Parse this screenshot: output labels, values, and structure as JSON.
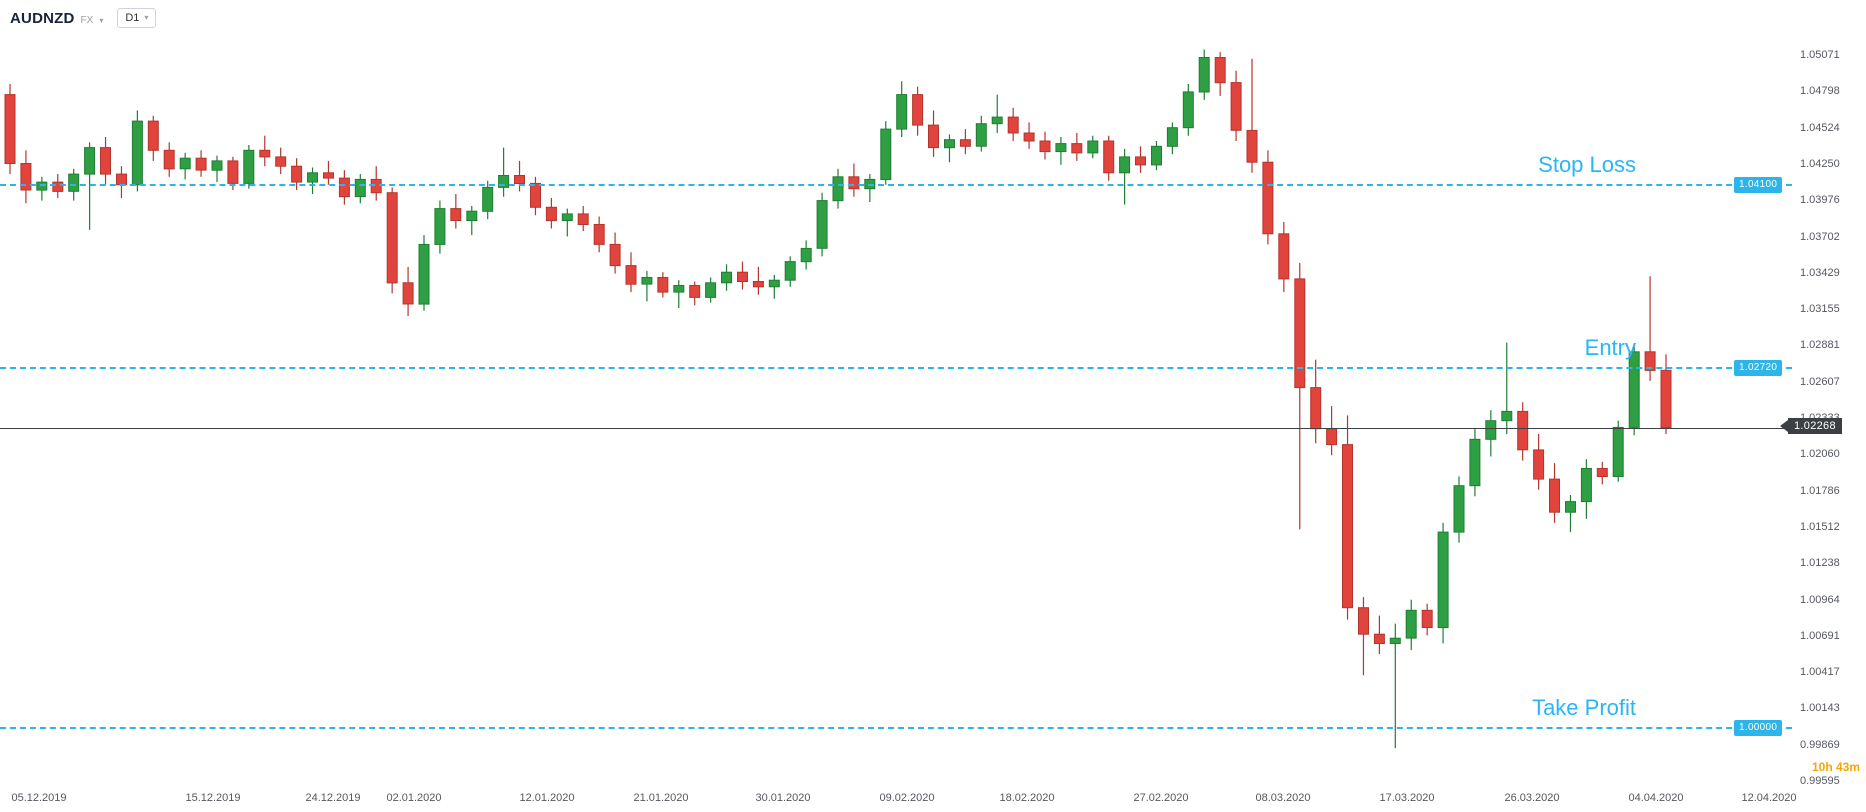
{
  "header": {
    "symbol": "AUDNZD",
    "market": "FX",
    "timeframe": "D1"
  },
  "chart_data": {
    "type": "candlestick",
    "title": "AUDNZD D1",
    "ylim": [
      0.99595,
      1.05071
    ],
    "y_axis_ticks": [
      "1.05071",
      "1.04798",
      "1.04524",
      "1.04250",
      "1.03976",
      "1.03702",
      "1.03429",
      "1.03155",
      "1.02881",
      "1.02607",
      "1.02333",
      "1.02060",
      "1.01786",
      "1.01512",
      "1.01238",
      "1.00964",
      "1.00691",
      "1.00417",
      "1.00143",
      "0.99869",
      "0.99595"
    ],
    "x_axis_ticks": [
      {
        "label": "05.12.2019",
        "pos": 0.022
      },
      {
        "label": "15.12.2019",
        "pos": 0.119
      },
      {
        "label": "24.12.2019",
        "pos": 0.186
      },
      {
        "label": "02.01.2020",
        "pos": 0.231
      },
      {
        "label": "12.01.2020",
        "pos": 0.305
      },
      {
        "label": "21.01.2020",
        "pos": 0.369
      },
      {
        "label": "30.01.2020",
        "pos": 0.437
      },
      {
        "label": "09.02.2020",
        "pos": 0.506
      },
      {
        "label": "18.02.2020",
        "pos": 0.573
      },
      {
        "label": "27.02.2020",
        "pos": 0.648
      },
      {
        "label": "08.03.2020",
        "pos": 0.716
      },
      {
        "label": "17.03.2020",
        "pos": 0.785
      },
      {
        "label": "26.03.2020",
        "pos": 0.855
      },
      {
        "label": "04.04.2020",
        "pos": 0.924
      },
      {
        "label": "12.04.2020",
        "pos": 0.987
      }
    ],
    "levels": [
      {
        "name": "stop_loss",
        "label": "Stop Loss",
        "price": 1.041,
        "tag": "1.04100"
      },
      {
        "name": "entry",
        "label": "Entry",
        "price": 1.0272,
        "tag": "1.02720"
      },
      {
        "name": "take_profit",
        "label": "Take Profit",
        "price": 1.0,
        "tag": "1.00000"
      }
    ],
    "last_price": {
      "price": 1.02268,
      "tag": "1.02268"
    },
    "countdown": "10h 43m",
    "colors": {
      "up": "#2ea043",
      "up_border": "#1e7e34",
      "down": "#e0443c",
      "down_border": "#b3362e",
      "level": "#2db4e8",
      "level_text": "#29b6f6",
      "last_price": "#3c3f44",
      "countdown": "#f7a600",
      "axis_text": "#55585f"
    },
    "candles": [
      [
        1.0478,
        1.0486,
        1.0418,
        1.0426
      ],
      [
        1.0426,
        1.0436,
        1.0396,
        1.0406
      ],
      [
        1.0406,
        1.0416,
        1.0398,
        1.0412
      ],
      [
        1.0412,
        1.0418,
        1.04,
        1.0405
      ],
      [
        1.0405,
        1.0422,
        1.0398,
        1.0418
      ],
      [
        1.0418,
        1.0442,
        1.0376,
        1.0438
      ],
      [
        1.0438,
        1.0446,
        1.041,
        1.0418
      ],
      [
        1.0418,
        1.0424,
        1.04,
        1.041
      ],
      [
        1.041,
        1.0466,
        1.0405,
        1.0458
      ],
      [
        1.0458,
        1.0462,
        1.0428,
        1.0436
      ],
      [
        1.0436,
        1.0442,
        1.0416,
        1.0422
      ],
      [
        1.0422,
        1.0434,
        1.0414,
        1.043
      ],
      [
        1.043,
        1.0436,
        1.0416,
        1.0421
      ],
      [
        1.0421,
        1.0432,
        1.0412,
        1.0428
      ],
      [
        1.0428,
        1.0431,
        1.0406,
        1.0411
      ],
      [
        1.0411,
        1.044,
        1.0407,
        1.0436
      ],
      [
        1.0436,
        1.0447,
        1.0424,
        1.0431
      ],
      [
        1.0431,
        1.0438,
        1.0418,
        1.0424
      ],
      [
        1.0424,
        1.043,
        1.0406,
        1.0412
      ],
      [
        1.0412,
        1.0423,
        1.0403,
        1.0419
      ],
      [
        1.0419,
        1.0428,
        1.041,
        1.0415
      ],
      [
        1.0415,
        1.0421,
        1.0395,
        1.0401
      ],
      [
        1.0401,
        1.0418,
        1.0396,
        1.0414
      ],
      [
        1.0414,
        1.0424,
        1.0398,
        1.0404
      ],
      [
        1.0404,
        1.0408,
        1.0328,
        1.0336
      ],
      [
        1.0336,
        1.0348,
        1.0311,
        1.032
      ],
      [
        1.032,
        1.0372,
        1.0315,
        1.0365
      ],
      [
        1.0365,
        1.0398,
        1.0358,
        1.0392
      ],
      [
        1.0392,
        1.0403,
        1.0377,
        1.0383
      ],
      [
        1.0383,
        1.0394,
        1.0372,
        1.039
      ],
      [
        1.039,
        1.0413,
        1.0384,
        1.0408
      ],
      [
        1.0408,
        1.0438,
        1.0401,
        1.0417
      ],
      [
        1.0417,
        1.0428,
        1.0405,
        1.0411
      ],
      [
        1.0411,
        1.0416,
        1.0387,
        1.0393
      ],
      [
        1.0393,
        1.04,
        1.0377,
        1.0383
      ],
      [
        1.0383,
        1.0392,
        1.0371,
        1.0388
      ],
      [
        1.0388,
        1.0394,
        1.0375,
        1.038
      ],
      [
        1.038,
        1.0386,
        1.0359,
        1.0365
      ],
      [
        1.0365,
        1.0374,
        1.0343,
        1.0349
      ],
      [
        1.0349,
        1.0359,
        1.0329,
        1.0335
      ],
      [
        1.0335,
        1.0345,
        1.0322,
        1.034
      ],
      [
        1.034,
        1.0344,
        1.0325,
        1.0329
      ],
      [
        1.0329,
        1.0338,
        1.0317,
        1.0334
      ],
      [
        1.0334,
        1.0337,
        1.0319,
        1.0325
      ],
      [
        1.0325,
        1.034,
        1.0321,
        1.0336
      ],
      [
        1.0336,
        1.035,
        1.033,
        1.0344
      ],
      [
        1.0344,
        1.0352,
        1.0331,
        1.0337
      ],
      [
        1.0337,
        1.0348,
        1.0327,
        1.0333
      ],
      [
        1.0333,
        1.0342,
        1.0324,
        1.0338
      ],
      [
        1.0338,
        1.0356,
        1.0333,
        1.0352
      ],
      [
        1.0352,
        1.0368,
        1.0346,
        1.0362
      ],
      [
        1.0362,
        1.0404,
        1.0356,
        1.0398
      ],
      [
        1.0398,
        1.0422,
        1.0392,
        1.0416
      ],
      [
        1.0416,
        1.0426,
        1.0401,
        1.0407
      ],
      [
        1.0407,
        1.0418,
        1.0397,
        1.0414
      ],
      [
        1.0414,
        1.0458,
        1.041,
        1.0452
      ],
      [
        1.0452,
        1.0488,
        1.0446,
        1.0478
      ],
      [
        1.0478,
        1.0484,
        1.0447,
        1.0455
      ],
      [
        1.0455,
        1.0466,
        1.0431,
        1.0438
      ],
      [
        1.0438,
        1.0448,
        1.0427,
        1.0444
      ],
      [
        1.0444,
        1.0452,
        1.0433,
        1.0439
      ],
      [
        1.0439,
        1.0462,
        1.0435,
        1.0456
      ],
      [
        1.0456,
        1.0478,
        1.0449,
        1.0461
      ],
      [
        1.0461,
        1.0468,
        1.0443,
        1.0449
      ],
      [
        1.0449,
        1.0457,
        1.0437,
        1.0443
      ],
      [
        1.0443,
        1.045,
        1.0429,
        1.0435
      ],
      [
        1.0435,
        1.0446,
        1.0425,
        1.0441
      ],
      [
        1.0441,
        1.0449,
        1.0428,
        1.0434
      ],
      [
        1.0434,
        1.0447,
        1.043,
        1.0443
      ],
      [
        1.0443,
        1.0447,
        1.0413,
        1.0419
      ],
      [
        1.0419,
        1.0437,
        1.0395,
        1.0431
      ],
      [
        1.0431,
        1.0439,
        1.0419,
        1.0425
      ],
      [
        1.0425,
        1.0443,
        1.0421,
        1.0439
      ],
      [
        1.0439,
        1.0457,
        1.0433,
        1.0453
      ],
      [
        1.0453,
        1.0486,
        1.0447,
        1.048
      ],
      [
        1.048,
        1.0512,
        1.0474,
        1.0506
      ],
      [
        1.0506,
        1.051,
        1.0477,
        1.0487
      ],
      [
        1.0487,
        1.0496,
        1.0443,
        1.0451
      ],
      [
        1.0451,
        1.0505,
        1.0419,
        1.0427
      ],
      [
        1.0427,
        1.0436,
        1.0365,
        1.0373
      ],
      [
        1.0373,
        1.0382,
        1.0329,
        1.0339
      ],
      [
        1.0339,
        1.0351,
        1.015,
        1.0257
      ],
      [
        1.0257,
        1.0278,
        1.0215,
        1.0226
      ],
      [
        1.0226,
        1.0243,
        1.0206,
        1.0214
      ],
      [
        1.0214,
        1.0236,
        1.0082,
        1.0091
      ],
      [
        1.0091,
        1.0099,
        1.004,
        1.0071
      ],
      [
        1.0071,
        1.0085,
        1.0056,
        1.0064
      ],
      [
        1.0064,
        1.0079,
        0.9985,
        1.0068
      ],
      [
        1.0068,
        1.0097,
        1.0059,
        1.0089
      ],
      [
        1.0089,
        1.0094,
        1.007,
        1.0076
      ],
      [
        1.0076,
        1.0155,
        1.0064,
        1.0148
      ],
      [
        1.0148,
        1.019,
        1.014,
        1.0183
      ],
      [
        1.0183,
        1.0226,
        1.0175,
        1.0218
      ],
      [
        1.0218,
        1.024,
        1.0205,
        1.0232
      ],
      [
        1.0232,
        1.0291,
        1.0222,
        1.0239
      ],
      [
        1.0239,
        1.0246,
        1.0202,
        1.021
      ],
      [
        1.021,
        1.0222,
        1.018,
        1.0188
      ],
      [
        1.0188,
        1.02,
        1.0155,
        1.0163
      ],
      [
        1.0163,
        1.0176,
        1.0148,
        1.0171
      ],
      [
        1.0171,
        1.0203,
        1.0158,
        1.0196
      ],
      [
        1.0196,
        1.0201,
        1.0184,
        1.019
      ],
      [
        1.019,
        1.0232,
        1.0186,
        1.0227
      ],
      [
        1.0227,
        1.029,
        1.0221,
        1.0284
      ],
      [
        1.0284,
        1.0341,
        1.0262,
        1.027
      ],
      [
        1.027,
        1.0282,
        1.0222,
        1.02268
      ]
    ]
  }
}
